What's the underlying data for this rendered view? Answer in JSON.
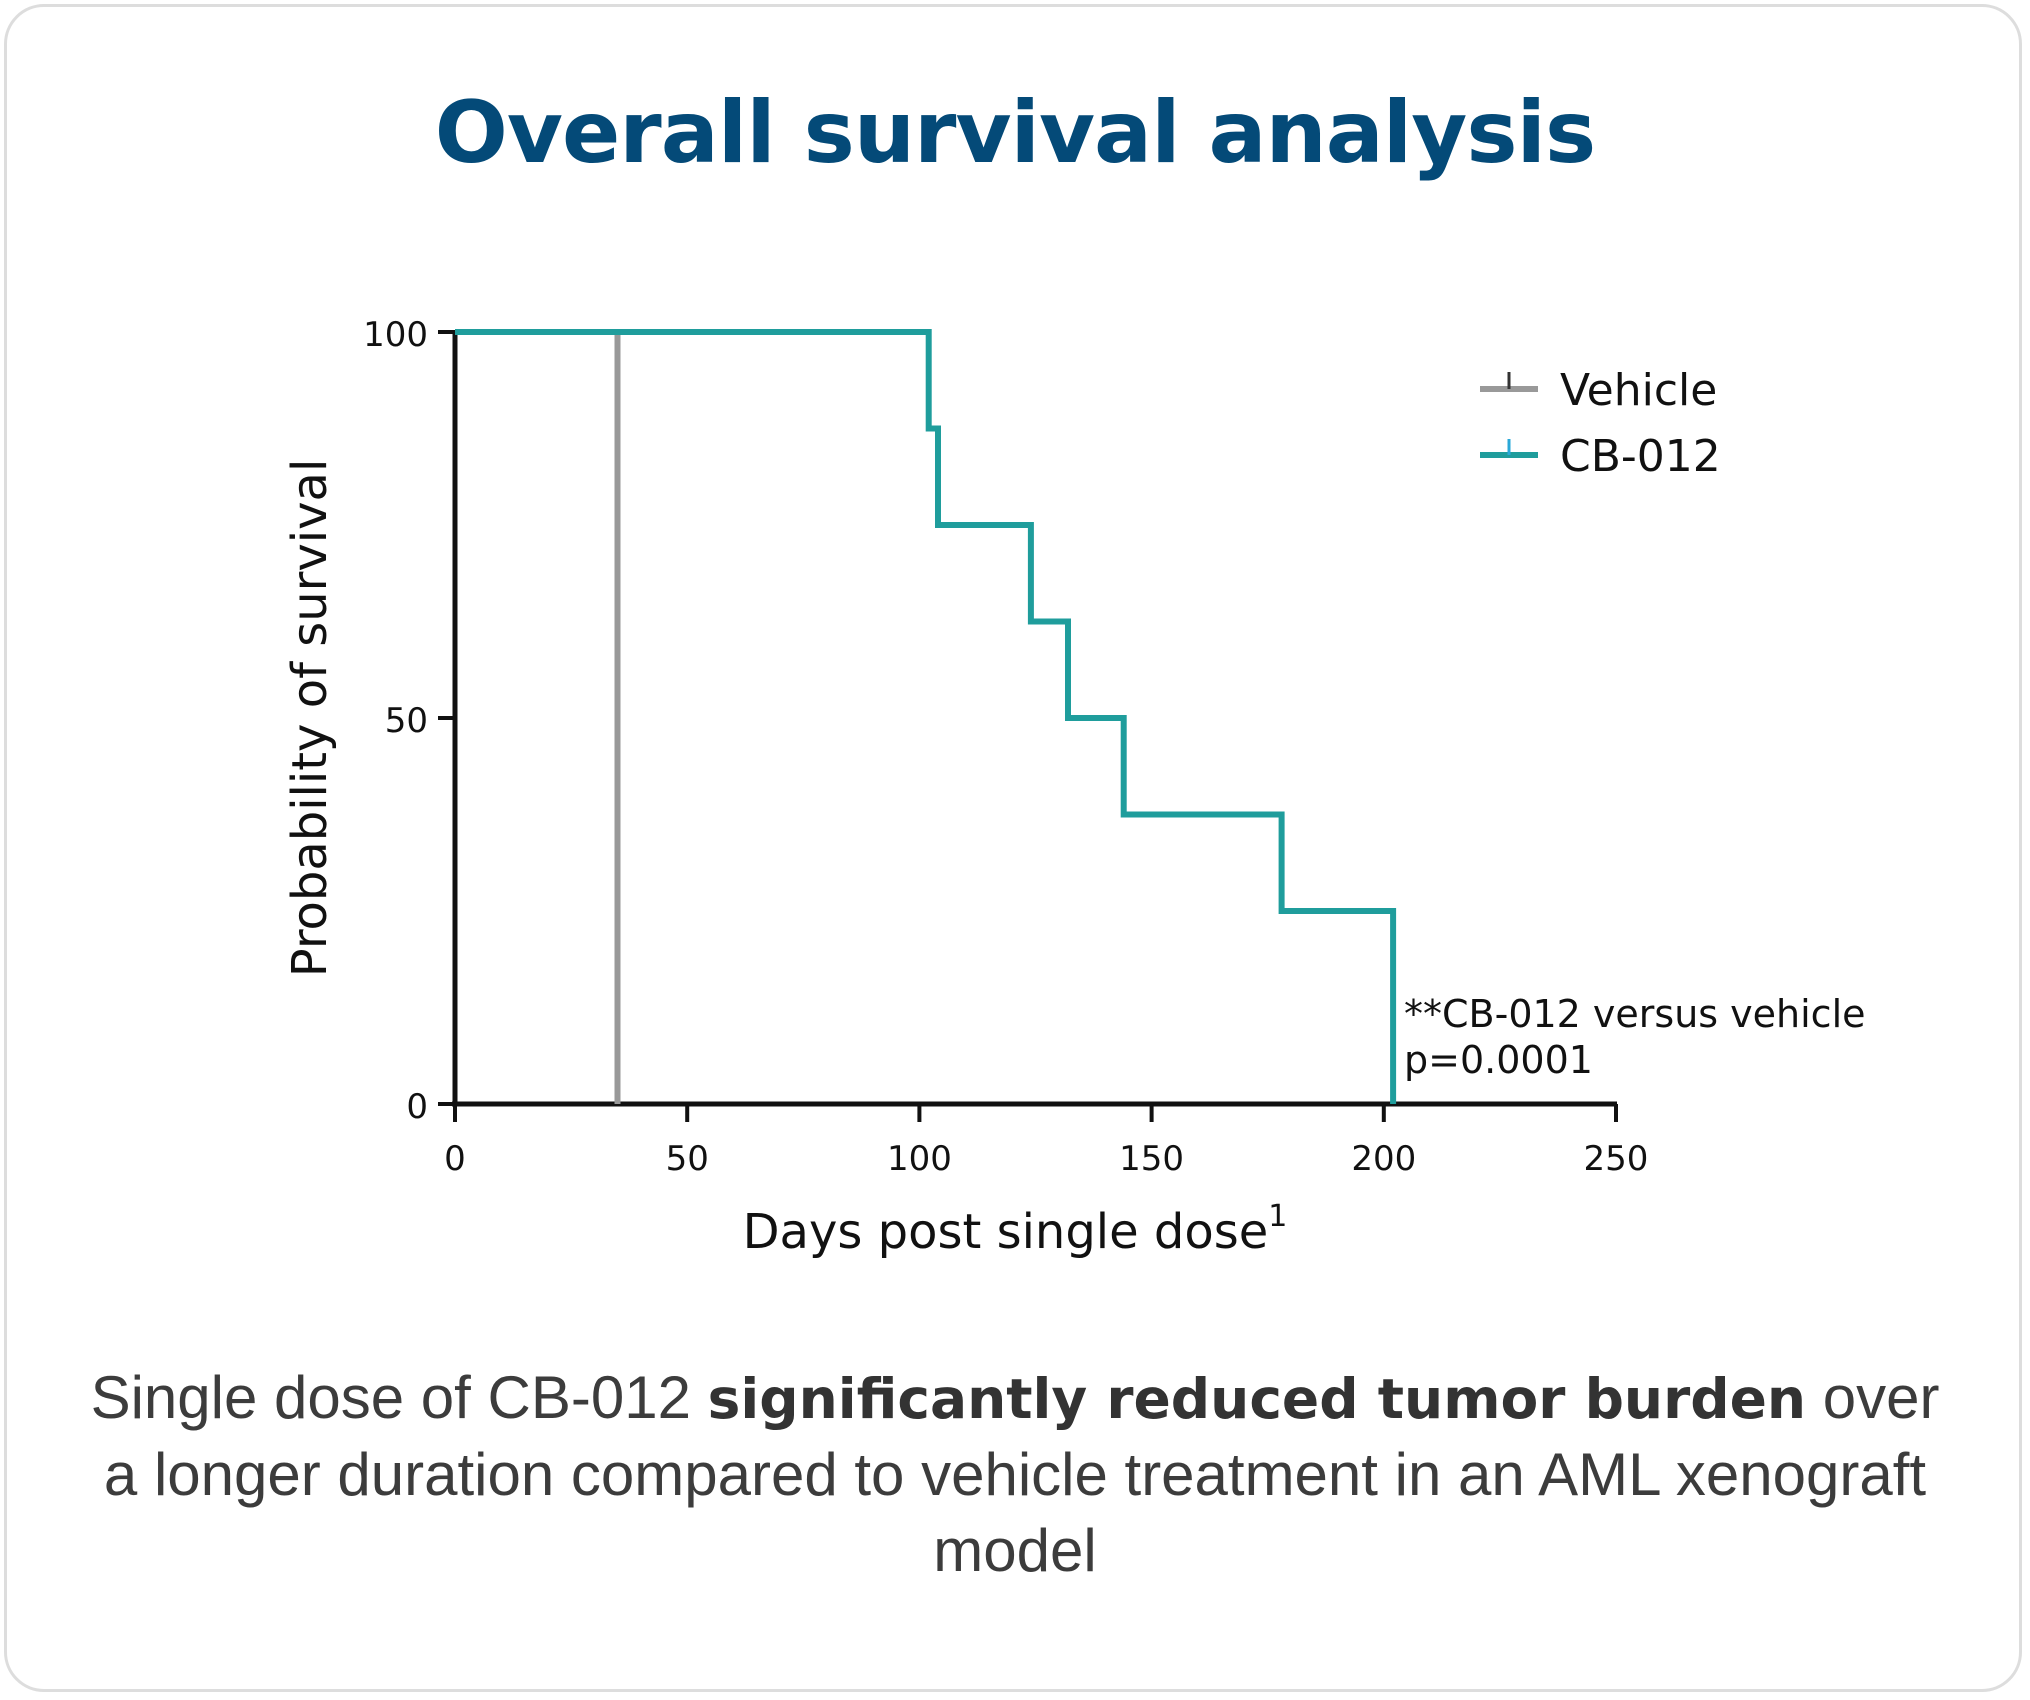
{
  "colors": {
    "title": "#044a78",
    "vehicle": "#999999",
    "cb012": "#1f9d9c",
    "cb012_tick": "#2aa8d8",
    "axis": "#111111",
    "caption": "#3c3c3c"
  },
  "page": {
    "title": "Overall survival analysis"
  },
  "chart_data": {
    "type": "line",
    "subtype": "kaplan-meier-step",
    "title": "Overall survival analysis",
    "xlabel": "Days post single dose",
    "xlabel_superscript": "1",
    "ylabel": "Probability of survival",
    "xlim": [
      0,
      250
    ],
    "ylim": [
      0,
      100
    ],
    "xticks": [
      0,
      50,
      100,
      150,
      200,
      250
    ],
    "yticks": [
      0,
      50,
      100
    ],
    "legend_position": "top-right",
    "series": [
      {
        "name": "Vehicle",
        "color": "#999999",
        "steps": [
          [
            0,
            100
          ],
          [
            35,
            100
          ],
          [
            35,
            0
          ]
        ]
      },
      {
        "name": "CB-012",
        "color": "#1f9d9c",
        "steps": [
          [
            0,
            100
          ],
          [
            102,
            100
          ],
          [
            102,
            87.5
          ],
          [
            104,
            87.5
          ],
          [
            104,
            75
          ],
          [
            124,
            75
          ],
          [
            124,
            62.5
          ],
          [
            132,
            62.5
          ],
          [
            132,
            50
          ],
          [
            144,
            50
          ],
          [
            144,
            37.5
          ],
          [
            178,
            37.5
          ],
          [
            178,
            25
          ],
          [
            202,
            25
          ],
          [
            202,
            0
          ]
        ]
      }
    ],
    "annotation": {
      "line1": "**CB-012 versus vehicle",
      "line2": "p=0.0001"
    }
  },
  "caption": {
    "part1": "Single dose of CB-012 ",
    "bold": "significantly reduced tumor burden",
    "part2": " over a longer duration compared to vehicle treatment in an AML xenograft model"
  }
}
